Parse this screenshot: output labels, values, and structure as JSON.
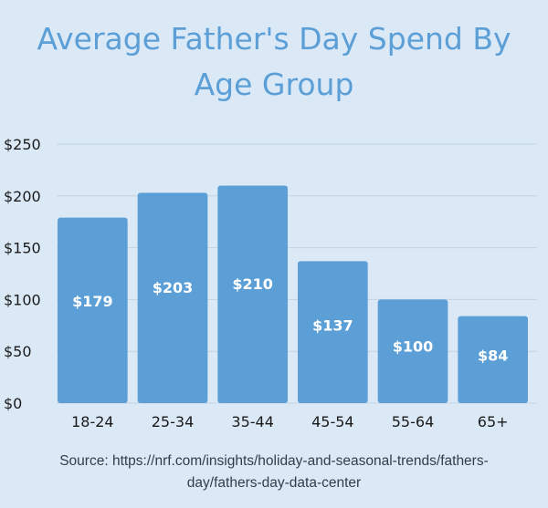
{
  "header": {
    "title_line1": "Average Father's Day Spend By",
    "title_line2": "Age Group"
  },
  "footer": {
    "source_line1": "Source: https://nrf.com/insights/holiday-and-seasonal-trends/fathers-",
    "source_line2": "day/fathers-day-data-center"
  },
  "colors": {
    "background": "#dbe9f7",
    "bar": "#5b9fd6",
    "title": "#5b9fd6",
    "data_label": "#ffffff",
    "axis_text": "#1a1a1a"
  },
  "chart_data": {
    "type": "bar",
    "title": "Average Father's Day Spend By Age Group",
    "xlabel": "",
    "ylabel": "",
    "categories": [
      "18-24",
      "25-34",
      "35-44",
      "45-54",
      "55-64",
      "65+"
    ],
    "values": [
      179,
      203,
      210,
      137,
      100,
      84
    ],
    "data_labels": [
      "$179",
      "$203",
      "$210",
      "$137",
      "$100",
      "$84"
    ],
    "ylim": [
      0,
      250
    ],
    "y_ticks": [
      0,
      50,
      100,
      150,
      200,
      250
    ],
    "y_tick_labels": [
      "$0",
      "$50",
      "$100",
      "$150",
      "$200",
      "$250"
    ],
    "grid": true,
    "legend": "none"
  }
}
